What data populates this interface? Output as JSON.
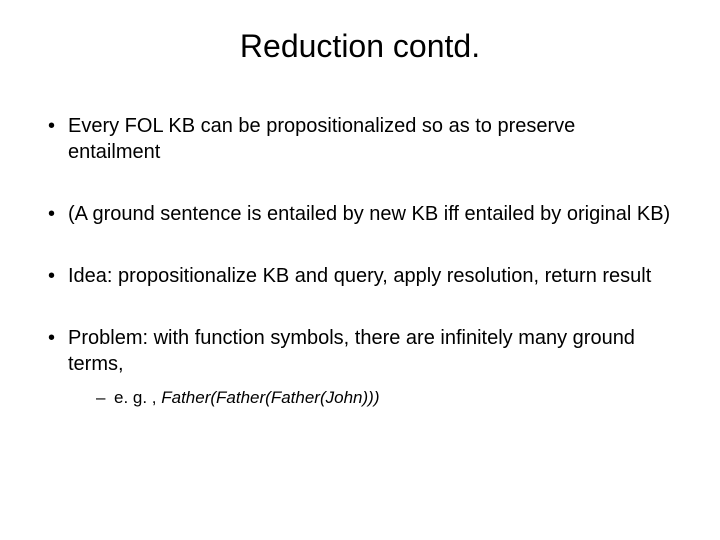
{
  "title": "Reduction contd.",
  "bullets": [
    {
      "text": "Every FOL KB can be propositionalized so as to preserve entailment"
    },
    {
      "text": "(A ground sentence is entailed by new KB iff entailed by original KB)"
    },
    {
      "text": "Idea: propositionalize KB and query, apply resolution, return result"
    },
    {
      "text": "Problem: with function symbols, there are infinitely many ground terms,"
    }
  ],
  "subbullet": {
    "prefix": "e. g. , ",
    "italic": "Father(Father(Father(John)))"
  },
  "style": {
    "background_color": "#ffffff",
    "text_color": "#000000",
    "title_fontsize": 32,
    "body_fontsize": 20,
    "sub_fontsize": 17
  }
}
